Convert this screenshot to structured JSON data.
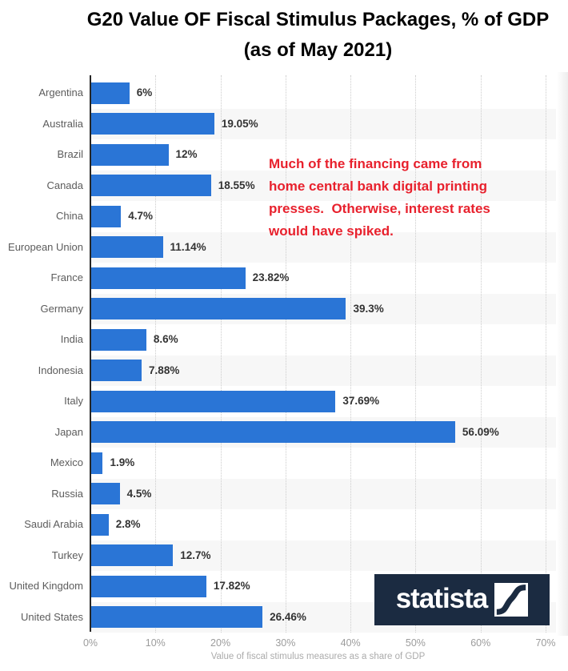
{
  "title": {
    "line1": "G20 Value OF Fiscal Stimulus Packages, % of GDP",
    "line2": "(as of May 2021)"
  },
  "annotation": {
    "text": "Much of the financing came from\nhome central bank digital printing\npresses.  Otherwise, interest rates\nwould have spiked.",
    "color": "#e8212d"
  },
  "chart_data": {
    "type": "bar",
    "orientation": "horizontal",
    "title": "G20 Value OF Fiscal Stimulus Packages, % of GDP (as of May 2021)",
    "categories": [
      "Argentina",
      "Australia",
      "Brazil",
      "Canada",
      "China",
      "European Union",
      "France",
      "Germany",
      "India",
      "Indonesia",
      "Italy",
      "Japan",
      "Mexico",
      "Russia",
      "Saudi Arabia",
      "Turkey",
      "United Kingdom",
      "United States"
    ],
    "values": [
      6,
      19.05,
      12,
      18.55,
      4.7,
      11.14,
      23.82,
      39.3,
      8.6,
      7.88,
      37.69,
      56.09,
      1.9,
      4.5,
      2.8,
      12.7,
      17.82,
      26.46
    ],
    "value_labels": [
      "6%",
      "19.05%",
      "12%",
      "18.55%",
      "4.7%",
      "11.14%",
      "23.82%",
      "39.3%",
      "8.6%",
      "7.88%",
      "37.69%",
      "56.09%",
      "1.9%",
      "4.5%",
      "2.8%",
      "12.7%",
      "17.82%",
      "26.46%"
    ],
    "xlabel": "Value of fiscal stimulus measures as a share of GDP",
    "ylabel": "",
    "x_ticks": [
      "0%",
      "10%",
      "20%",
      "30%",
      "40%",
      "50%",
      "60%",
      "70%"
    ],
    "xlim": [
      0,
      70
    ],
    "grid": true,
    "legend": false,
    "bar_color": "#2a75d6",
    "stripe_color": "#f7f7f7"
  },
  "logo": {
    "text": "statista",
    "bg_color": "#1b2b41"
  }
}
